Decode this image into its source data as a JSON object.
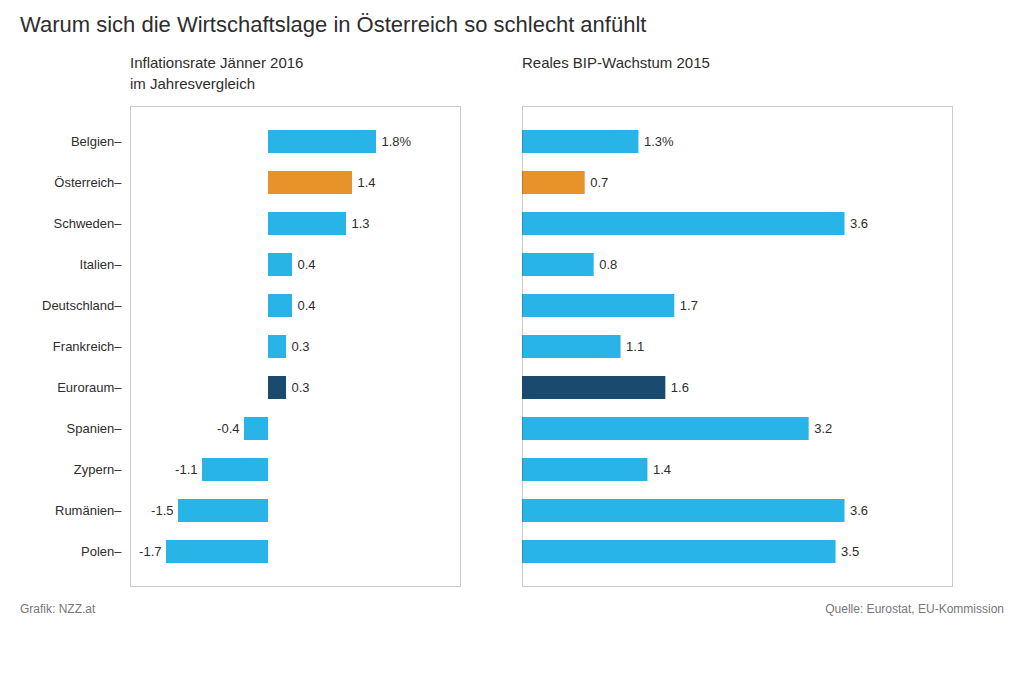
{
  "chart_data": [
    {
      "type": "bar",
      "title": "Warum sich die Wirtschaftslage in Österreich so schlecht anfühlt",
      "subtitle": "Inflationsrate Jänner 2016\nim Jahresvergleich",
      "orientation": "horizontal",
      "categories": [
        "Belgien–",
        "Österreich–",
        "Schweden–",
        "Italien–",
        "Deutschland–",
        "Frankreich–",
        "Euroraum–",
        "Spanien–",
        "Zypern–",
        "Rumänien–",
        "Polen–"
      ],
      "values": [
        1.8,
        1.4,
        1.3,
        0.4,
        0.4,
        0.3,
        0.3,
        -0.4,
        -1.1,
        -1.5,
        -1.7
      ],
      "value_labels": [
        "1.8%",
        "1.4",
        "1.3",
        "0.4",
        "0.4",
        "0.3",
        "0.3",
        "-0.4",
        "-1.1",
        "-1.5",
        "-1.7"
      ],
      "colors": [
        "#29b4e8",
        "#e8922a",
        "#29b4e8",
        "#29b4e8",
        "#29b4e8",
        "#29b4e8",
        "#1a4a6e",
        "#29b4e8",
        "#29b4e8",
        "#29b4e8",
        "#29b4e8"
      ],
      "xlim": [
        -2.3,
        3.2
      ],
      "xticks": [],
      "tick_labels": "y",
      "data_labels": true,
      "grid": false,
      "annotations": [
        "Grafik: NZZ.at",
        "Quelle: Eurostat, EU-Kommission"
      ]
    },
    {
      "type": "bar",
      "subtitle": "Reales BIP-Wachstum 2015",
      "orientation": "horizontal",
      "categories": [
        "Belgien–",
        "Österreich–",
        "Schweden–",
        "Italien–",
        "Deutschland–",
        "Frankreich–",
        "Euroraum–",
        "Spanien–",
        "Zypern–",
        "Rumänien–",
        "Polen–"
      ],
      "values": [
        1.3,
        0.7,
        3.6,
        0.8,
        1.7,
        1.1,
        1.6,
        3.2,
        1.4,
        3.6,
        3.5
      ],
      "value_labels": [
        "1.3%",
        "0.7",
        "3.6",
        "0.8",
        "1.7",
        "1.1",
        "1.6",
        "3.2",
        "1.4",
        "3.6",
        "3.5"
      ],
      "colors": [
        "#29b4e8",
        "#e8922a",
        "#29b4e8",
        "#29b4e8",
        "#29b4e8",
        "#29b4e8",
        "#1a4a6e",
        "#29b4e8",
        "#29b4e8",
        "#29b4e8",
        "#29b4e8"
      ],
      "xlim": [
        0,
        4.8
      ],
      "xticks": [],
      "tick_labels": false,
      "data_labels": true,
      "grid": false
    }
  ]
}
